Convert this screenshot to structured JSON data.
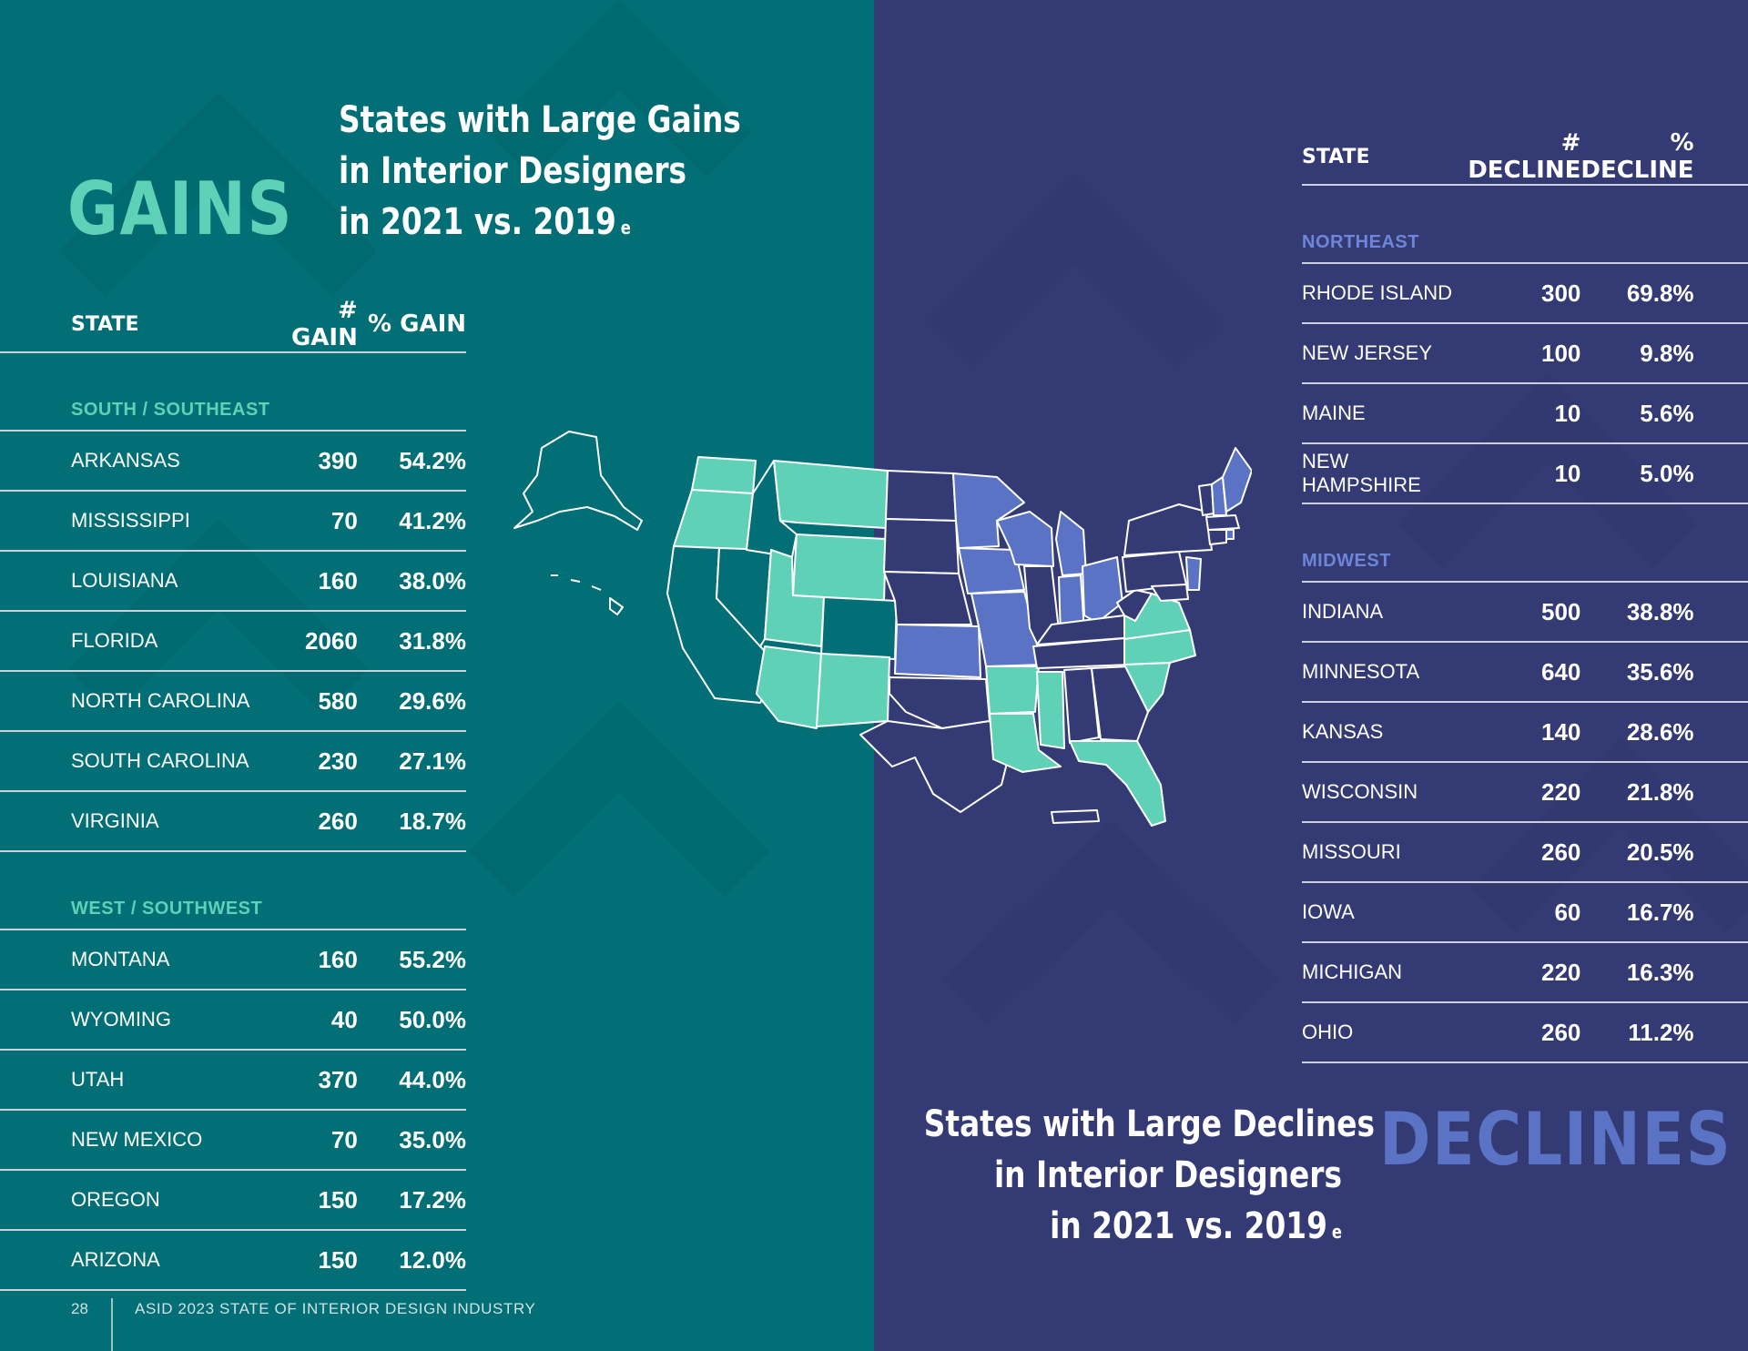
{
  "gains": {
    "heading": "GAINS",
    "subtitle_lines": [
      "States with Large Gains",
      "in Interior Designers",
      "in 2021 vs. 2019"
    ],
    "superscript": "e",
    "columns": {
      "state": "STATE",
      "num": "# GAIN",
      "pct": "% GAIN"
    },
    "groups": [
      {
        "name": "SOUTH / SOUTHEAST",
        "rows": [
          {
            "state": "ARKANSAS",
            "num": "390",
            "pct": "54.2%"
          },
          {
            "state": "MISSISSIPPI",
            "num": "70",
            "pct": "41.2%"
          },
          {
            "state": "LOUISIANA",
            "num": "160",
            "pct": "38.0%"
          },
          {
            "state": "FLORIDA",
            "num": "2060",
            "pct": "31.8%"
          },
          {
            "state": "NORTH CAROLINA",
            "num": "580",
            "pct": "29.6%"
          },
          {
            "state": "SOUTH CAROLINA",
            "num": "230",
            "pct": "27.1%"
          },
          {
            "state": "VIRGINIA",
            "num": "260",
            "pct": "18.7%"
          }
        ]
      },
      {
        "name": "WEST / SOUTHWEST",
        "rows": [
          {
            "state": "MONTANA",
            "num": "160",
            "pct": "55.2%"
          },
          {
            "state": "WYOMING",
            "num": "40",
            "pct": "50.0%"
          },
          {
            "state": "UTAH",
            "num": "370",
            "pct": "44.0%"
          },
          {
            "state": "NEW MEXICO",
            "num": "70",
            "pct": "35.0%"
          },
          {
            "state": "OREGON",
            "num": "150",
            "pct": "17.2%"
          },
          {
            "state": "ARIZONA",
            "num": "150",
            "pct": "12.0%"
          }
        ]
      }
    ]
  },
  "declines": {
    "heading": "DECLINES",
    "subtitle_lines": [
      "States with Large Declines",
      "in Interior Designers",
      "in 2021 vs. 2019"
    ],
    "superscript": "e",
    "columns": {
      "state": "STATE",
      "num": "# DECLINE",
      "pct": "% DECLINE"
    },
    "groups": [
      {
        "name": "NORTHEAST",
        "rows": [
          {
            "state": "RHODE ISLAND",
            "num": "300",
            "pct": "69.8%"
          },
          {
            "state": "NEW JERSEY",
            "num": "100",
            "pct": "9.8%"
          },
          {
            "state": "MAINE",
            "num": "10",
            "pct": "5.6%"
          },
          {
            "state": "NEW HAMPSHIRE",
            "num": "10",
            "pct": "5.0%"
          }
        ]
      },
      {
        "name": "MIDWEST",
        "rows": [
          {
            "state": "INDIANA",
            "num": "500",
            "pct": "38.8%"
          },
          {
            "state": "MINNESOTA",
            "num": "640",
            "pct": "35.6%"
          },
          {
            "state": "KANSAS",
            "num": "140",
            "pct": "28.6%"
          },
          {
            "state": "WISCONSIN",
            "num": "220",
            "pct": "21.8%"
          },
          {
            "state": "MISSOURI",
            "num": "260",
            "pct": "20.5%"
          },
          {
            "state": "IOWA",
            "num": "60",
            "pct": "16.7%"
          },
          {
            "state": "MICHIGAN",
            "num": "220",
            "pct": "16.3%"
          },
          {
            "state": "OHIO",
            "num": "260",
            "pct": "11.2%"
          }
        ]
      }
    ]
  },
  "footer": {
    "page_number": "28",
    "publication": "ASID 2023 STATE OF INTERIOR DESIGN INDUSTRY"
  },
  "colors": {
    "gains_bg": "#026e75",
    "declines_bg": "#343a73",
    "gain_accent": "#5fd1b7",
    "decline_accent": "#5a73c5"
  },
  "map": {
    "gain_states": [
      "WA",
      "OR",
      "MT",
      "WY",
      "UT",
      "AZ",
      "NM",
      "AR",
      "LA",
      "MS",
      "FL",
      "NC",
      "SC",
      "VA"
    ],
    "decline_states": [
      "MN",
      "WI",
      "IA",
      "MO",
      "KS",
      "IN",
      "OH",
      "MI",
      "ME",
      "NH",
      "NJ",
      "RI"
    ]
  }
}
